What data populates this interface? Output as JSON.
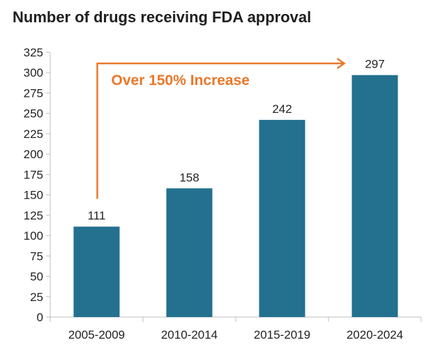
{
  "title": "Number of drugs receiving FDA approval",
  "chart_data": {
    "type": "bar",
    "categories": [
      "2005-2009",
      "2010-2014",
      "2015-2019",
      "2020-2024"
    ],
    "values": [
      111,
      158,
      242,
      297
    ],
    "title": "Number of drugs receiving FDA approval",
    "xlabel": "",
    "ylabel": "",
    "ylim": [
      0,
      325
    ],
    "yticks": [
      0,
      25,
      50,
      75,
      100,
      125,
      150,
      175,
      200,
      225,
      250,
      275,
      300,
      325
    ],
    "grid": false,
    "legend": "none",
    "bar_color": "#23708f",
    "annotation": {
      "text": "Over 150% Increase",
      "color": "#e8782a",
      "from_category": "2005-2009",
      "to_category": "2020-2024"
    }
  }
}
